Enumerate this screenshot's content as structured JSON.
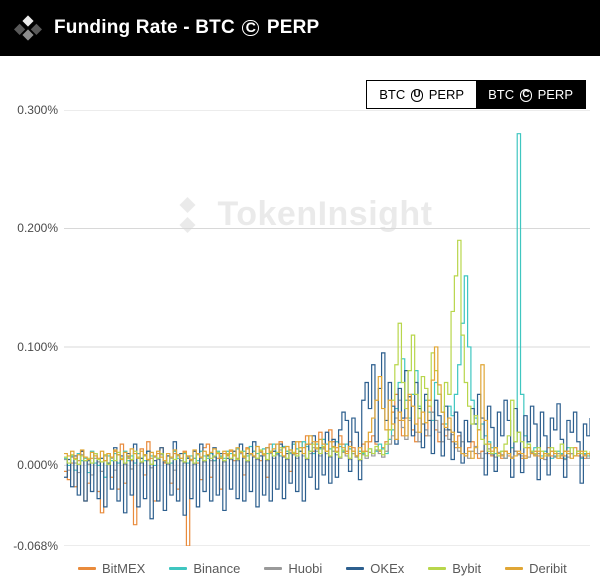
{
  "header": {
    "title_prefix": "Funding Rate - BTC",
    "circled_symbol": "C",
    "title_suffix": "PERP"
  },
  "watermark": {
    "text": "TokenInsight"
  },
  "tabs": [
    {
      "prefix": "BTC",
      "symbol": "U",
      "suffix": "PERP",
      "active": false
    },
    {
      "prefix": "BTC",
      "symbol": "C",
      "suffix": "PERP",
      "active": true
    }
  ],
  "chart": {
    "type": "line-step",
    "ylabel_format": "percent",
    "ylim": [
      -0.068,
      0.3
    ],
    "yticks": [
      {
        "v": 0.3,
        "label": "0.300%"
      },
      {
        "v": 0.2,
        "label": "0.200%"
      },
      {
        "v": 0.1,
        "label": "0.100%"
      },
      {
        "v": 0.0,
        "label": "0.000%"
      },
      {
        "v": -0.068,
        "label": "-0.068%"
      }
    ],
    "x_count": 160,
    "background_color": "#ffffff",
    "grid_color": "#d8d8d8",
    "axis_fontsize": 12,
    "line_width": 1.2,
    "series": [
      {
        "name": "BitMEX",
        "color": "#e98b3c",
        "values": [
          -0.005,
          -0.012,
          0.002,
          -0.018,
          0.004,
          0.012,
          -0.03,
          -0.015,
          0.006,
          0.008,
          -0.022,
          -0.04,
          0.004,
          0.01,
          -0.01,
          0.012,
          -0.02,
          0.018,
          -0.015,
          0.006,
          0.004,
          -0.05,
          0.01,
          0.014,
          -0.008,
          0.02,
          0.006,
          -0.03,
          0.01,
          0.015,
          0.002,
          0.008,
          -0.015,
          0.01,
          -0.02,
          0.004,
          0.012,
          -0.068,
          0.004,
          0.006,
          0.002,
          -0.012,
          0.015,
          0.018,
          -0.01,
          0.004,
          0.006,
          -0.02,
          0.01,
          0.008,
          0.012,
          0.004,
          0.006,
          0.01,
          -0.008,
          0.015,
          0.01,
          0.012,
          0.006,
          0.004,
          0.008,
          -0.01,
          0.018,
          0.012,
          0.01,
          0.02,
          0.015,
          0.012,
          -0.005,
          0.018,
          0.01,
          0.02,
          0.015,
          0.025,
          0.018,
          0.012,
          0.02,
          0.028,
          0.015,
          0.01,
          0.03,
          0.02,
          0.015,
          0.025,
          0.018,
          0.012,
          0.02,
          0.015,
          0.008,
          0.01,
          0.018,
          0.012,
          0.02,
          0.025,
          0.018,
          0.012,
          0.015,
          0.02,
          0.03,
          0.045,
          0.06,
          0.038,
          0.025,
          0.04,
          0.055,
          0.03,
          0.02,
          0.04,
          0.035,
          0.025,
          0.05,
          0.045,
          0.03,
          0.02,
          0.035,
          0.025,
          0.03,
          0.02,
          0.015,
          0.025,
          0.01,
          0.008,
          0.015,
          0.02,
          0.01,
          0.006,
          0.012,
          0.018,
          0.01,
          0.008,
          0.015,
          0.01,
          0.006,
          0.012,
          0.008,
          0.015,
          0.012,
          0.01,
          0.006,
          0.008,
          0.015,
          0.01,
          0.012,
          0.008,
          0.006,
          0.01,
          0.015,
          0.008,
          0.012,
          0.01,
          0.006,
          0.008,
          0.012,
          0.01,
          0.015,
          0.008,
          0.01,
          0.006,
          0.01,
          0.008
        ]
      },
      {
        "name": "Binance",
        "color": "#3fc6c0",
        "values": [
          0.006,
          0.0,
          0.008,
          -0.004,
          0.01,
          0.004,
          0.006,
          -0.006,
          0.012,
          0.002,
          0.0,
          0.006,
          -0.01,
          0.008,
          0.004,
          0.01,
          0.002,
          0.006,
          0.012,
          0.004,
          0.008,
          0.002,
          0.01,
          0.006,
          0.004,
          0.012,
          0.008,
          0.0,
          0.006,
          0.01,
          0.004,
          0.008,
          0.002,
          0.012,
          0.006,
          0.004,
          0.01,
          0.002,
          0.008,
          0.006,
          0.004,
          0.012,
          0.008,
          0.006,
          0.01,
          0.004,
          0.012,
          0.008,
          0.006,
          0.012,
          0.01,
          0.008,
          0.014,
          0.01,
          0.012,
          0.008,
          0.016,
          0.012,
          0.01,
          0.008,
          0.014,
          0.01,
          0.012,
          0.018,
          0.01,
          0.008,
          0.016,
          0.012,
          0.01,
          0.018,
          0.014,
          0.012,
          0.02,
          0.016,
          0.012,
          0.01,
          0.018,
          0.014,
          0.022,
          0.018,
          0.014,
          0.012,
          0.02,
          0.016,
          0.012,
          0.018,
          0.014,
          0.01,
          0.008,
          0.012,
          0.01,
          0.008,
          0.014,
          0.01,
          0.012,
          0.018,
          0.014,
          0.01,
          0.022,
          0.03,
          0.048,
          0.07,
          0.09,
          0.055,
          0.04,
          0.06,
          0.08,
          0.05,
          0.035,
          0.055,
          0.045,
          0.038,
          0.07,
          0.06,
          0.045,
          0.035,
          0.05,
          0.042,
          0.06,
          0.085,
          0.12,
          0.16,
          0.1,
          0.055,
          0.04,
          0.03,
          0.035,
          0.025,
          0.02,
          0.015,
          0.01,
          0.008,
          0.012,
          0.006,
          0.01,
          0.015,
          0.02,
          0.28,
          0.06,
          0.025,
          0.018,
          0.012,
          0.015,
          0.01,
          0.008,
          0.012,
          0.01,
          0.006,
          0.008,
          0.012,
          0.01,
          0.006,
          0.015,
          0.01,
          0.008,
          0.012,
          0.006,
          0.01,
          0.008,
          0.01
        ]
      },
      {
        "name": "Huobi",
        "color": "#9a9a9a",
        "values": [
          0.005,
          -0.004,
          0.007,
          0.002,
          -0.006,
          0.009,
          0.004,
          0.001,
          -0.008,
          0.006,
          0.003,
          -0.005,
          0.008,
          0.002,
          0.006,
          -0.004,
          0.009,
          0.005,
          0.001,
          0.007,
          -0.003,
          0.01,
          0.006,
          0.002,
          0.008,
          0.004,
          -0.002,
          0.007,
          0.005,
          0.009,
          0.003,
          0.001,
          0.006,
          -0.004,
          0.008,
          0.004,
          0.002,
          0.007,
          0.005,
          0.001,
          0.009,
          0.006,
          0.003,
          0.008,
          0.004,
          0.007,
          0.01,
          0.006,
          0.003,
          0.009,
          0.005,
          0.008,
          0.004,
          0.01,
          0.006,
          0.003,
          0.009,
          0.007,
          0.005,
          0.011,
          0.008,
          0.004,
          0.01,
          0.006,
          0.009,
          0.013,
          0.007,
          0.005,
          0.011,
          0.009,
          0.006,
          0.012,
          0.008,
          0.005,
          0.01,
          0.015,
          0.012,
          0.008,
          0.014,
          0.01,
          0.007,
          0.012,
          0.009,
          0.006,
          0.011,
          0.008,
          0.005,
          0.01,
          0.007,
          0.004,
          0.009,
          0.006,
          0.011,
          0.008,
          0.013,
          0.01,
          0.007,
          0.012,
          0.018,
          0.025,
          0.04,
          0.055,
          0.032,
          0.022,
          0.038,
          0.05,
          0.028,
          0.02,
          0.035,
          0.03,
          0.025,
          0.045,
          0.038,
          0.028,
          0.02,
          0.03,
          0.022,
          0.026,
          0.018,
          0.012,
          0.02,
          0.01,
          0.006,
          0.012,
          0.016,
          0.01,
          0.006,
          0.01,
          0.014,
          0.009,
          0.007,
          0.011,
          0.009,
          0.006,
          0.01,
          0.007,
          0.012,
          0.009,
          0.008,
          0.006,
          0.007,
          0.011,
          0.009,
          0.01,
          0.006,
          0.005,
          0.009,
          0.012,
          0.007,
          0.01,
          0.009,
          0.005,
          0.007,
          0.01,
          0.008,
          0.012,
          0.007,
          0.009,
          0.006,
          0.009,
          0.007
        ]
      },
      {
        "name": "OKEx",
        "color": "#2d5f8e",
        "values": [
          -0.01,
          0.005,
          -0.018,
          0.008,
          -0.025,
          0.012,
          -0.03,
          0.004,
          -0.022,
          0.01,
          -0.028,
          0.006,
          -0.035,
          0.002,
          -0.02,
          0.015,
          -0.03,
          0.008,
          -0.04,
          0.01,
          -0.025,
          0.018,
          -0.035,
          0.006,
          -0.028,
          0.012,
          -0.045,
          0.004,
          -0.03,
          0.015,
          -0.038,
          0.008,
          -0.025,
          0.02,
          -0.03,
          0.01,
          -0.042,
          0.006,
          -0.028,
          0.012,
          -0.035,
          0.018,
          -0.022,
          0.008,
          -0.03,
          0.015,
          -0.025,
          0.01,
          -0.038,
          0.006,
          -0.02,
          0.012,
          -0.028,
          0.018,
          -0.03,
          0.01,
          -0.022,
          0.02,
          -0.035,
          0.008,
          -0.025,
          0.015,
          -0.03,
          0.012,
          -0.02,
          0.018,
          -0.028,
          0.01,
          -0.015,
          0.02,
          -0.022,
          0.012,
          -0.03,
          0.018,
          -0.01,
          0.025,
          -0.02,
          0.015,
          -0.008,
          0.028,
          -0.015,
          0.022,
          -0.01,
          0.03,
          0.045,
          0.038,
          -0.005,
          0.04,
          0.028,
          -0.012,
          0.055,
          0.07,
          0.048,
          0.085,
          0.02,
          0.065,
          0.095,
          0.038,
          0.07,
          0.05,
          0.018,
          0.065,
          0.04,
          0.08,
          0.058,
          0.025,
          0.07,
          0.048,
          0.015,
          0.06,
          0.038,
          0.01,
          0.055,
          0.042,
          0.008,
          0.05,
          0.03,
          0.005,
          0.045,
          0.028,
          0.002,
          0.038,
          0.02,
          0.048,
          0.035,
          0.06,
          0.04,
          -0.008,
          0.05,
          0.032,
          -0.005,
          0.045,
          0.025,
          0.055,
          0.038,
          -0.01,
          0.048,
          0.028,
          -0.006,
          0.042,
          0.02,
          0.05,
          0.035,
          -0.012,
          0.045,
          0.025,
          -0.008,
          0.04,
          0.03,
          0.052,
          0.022,
          -0.01,
          0.038,
          0.028,
          0.045,
          0.02,
          -0.015,
          0.035,
          0.025,
          0.04
        ]
      },
      {
        "name": "Bybit",
        "color": "#b8d64b",
        "values": [
          0.007,
          0.002,
          0.009,
          0.005,
          0.001,
          0.008,
          0.004,
          0.006,
          0.002,
          0.01,
          0.005,
          0.003,
          0.009,
          0.001,
          0.007,
          0.004,
          0.011,
          0.006,
          0.002,
          0.008,
          0.005,
          0.012,
          0.007,
          0.003,
          0.009,
          0.005,
          0.001,
          0.008,
          0.006,
          0.01,
          0.004,
          0.002,
          0.007,
          0.005,
          0.009,
          0.006,
          0.003,
          0.008,
          0.005,
          0.002,
          0.01,
          0.007,
          0.004,
          0.009,
          0.006,
          0.008,
          0.011,
          0.007,
          0.004,
          0.01,
          0.006,
          0.009,
          0.005,
          0.012,
          0.008,
          0.004,
          0.01,
          0.008,
          0.006,
          0.013,
          0.01,
          0.005,
          0.012,
          0.008,
          0.011,
          0.015,
          0.008,
          0.006,
          0.013,
          0.011,
          0.008,
          0.015,
          0.01,
          0.006,
          0.012,
          0.018,
          0.015,
          0.01,
          0.016,
          0.012,
          0.008,
          0.015,
          0.011,
          0.007,
          0.013,
          0.01,
          0.006,
          0.012,
          0.008,
          0.005,
          0.011,
          0.008,
          0.014,
          0.01,
          0.016,
          0.013,
          0.009,
          0.018,
          0.03,
          0.055,
          0.085,
          0.12,
          0.07,
          0.048,
          0.08,
          0.11,
          0.06,
          0.04,
          0.075,
          0.065,
          0.05,
          0.095,
          0.08,
          0.06,
          0.045,
          0.07,
          0.06,
          0.13,
          0.16,
          0.19,
          0.11,
          0.07,
          0.05,
          0.035,
          0.042,
          0.03,
          0.022,
          0.018,
          0.012,
          0.01,
          0.015,
          0.008,
          0.012,
          0.018,
          0.025,
          0.055,
          0.02,
          0.028,
          0.02,
          0.015,
          0.018,
          0.012,
          0.01,
          0.015,
          0.012,
          0.008,
          0.01,
          0.015,
          0.012,
          0.008,
          0.018,
          0.012,
          0.01,
          0.015,
          0.008,
          0.012,
          0.01,
          0.012,
          0.01,
          0.012
        ]
      },
      {
        "name": "Deribit",
        "color": "#e0a635",
        "values": [
          0.01,
          0.008,
          0.012,
          0.006,
          0.009,
          0.013,
          0.007,
          0.005,
          0.011,
          0.008,
          0.006,
          0.012,
          0.004,
          0.01,
          0.007,
          0.013,
          0.009,
          0.005,
          0.011,
          0.008,
          0.014,
          0.01,
          0.006,
          0.012,
          0.009,
          0.005,
          0.011,
          0.008,
          0.012,
          0.007,
          0.004,
          0.01,
          0.007,
          0.013,
          0.009,
          0.006,
          0.011,
          0.008,
          0.005,
          0.013,
          0.01,
          0.007,
          0.012,
          0.009,
          0.011,
          0.014,
          0.01,
          0.006,
          0.012,
          0.009,
          0.013,
          0.008,
          0.015,
          0.011,
          0.007,
          0.014,
          0.01,
          0.008,
          0.016,
          0.012,
          0.009,
          0.015,
          0.011,
          0.014,
          0.018,
          0.011,
          0.008,
          0.016,
          0.013,
          0.01,
          0.02,
          0.015,
          0.01,
          0.018,
          0.025,
          0.02,
          0.014,
          0.022,
          0.018,
          0.012,
          0.02,
          0.016,
          0.012,
          0.018,
          0.015,
          0.01,
          0.016,
          0.012,
          0.008,
          0.015,
          0.012,
          0.02,
          0.028,
          0.04,
          0.055,
          0.075,
          0.048,
          0.03,
          0.055,
          0.035,
          0.022,
          0.045,
          0.038,
          0.025,
          0.06,
          0.05,
          0.035,
          0.028,
          0.045,
          0.036,
          0.055,
          0.072,
          0.1,
          0.068,
          0.045,
          0.032,
          0.04,
          0.028,
          0.02,
          0.015,
          0.01,
          0.008,
          0.012,
          0.006,
          0.015,
          0.03,
          0.085,
          0.038,
          0.018,
          0.012,
          0.015,
          0.01,
          0.008,
          0.012,
          0.01,
          0.006,
          0.008,
          0.012,
          0.01,
          0.006,
          0.015,
          0.01,
          0.008,
          0.012,
          0.006,
          0.01,
          0.008,
          0.012,
          0.01,
          0.006,
          0.008,
          0.012,
          0.01,
          0.006,
          0.008,
          0.01,
          0.012,
          0.008,
          0.01,
          0.008
        ]
      }
    ]
  },
  "legend_labels": [
    "BitMEX",
    "Binance",
    "Huobi",
    "OKEx",
    "Bybit",
    "Deribit"
  ]
}
